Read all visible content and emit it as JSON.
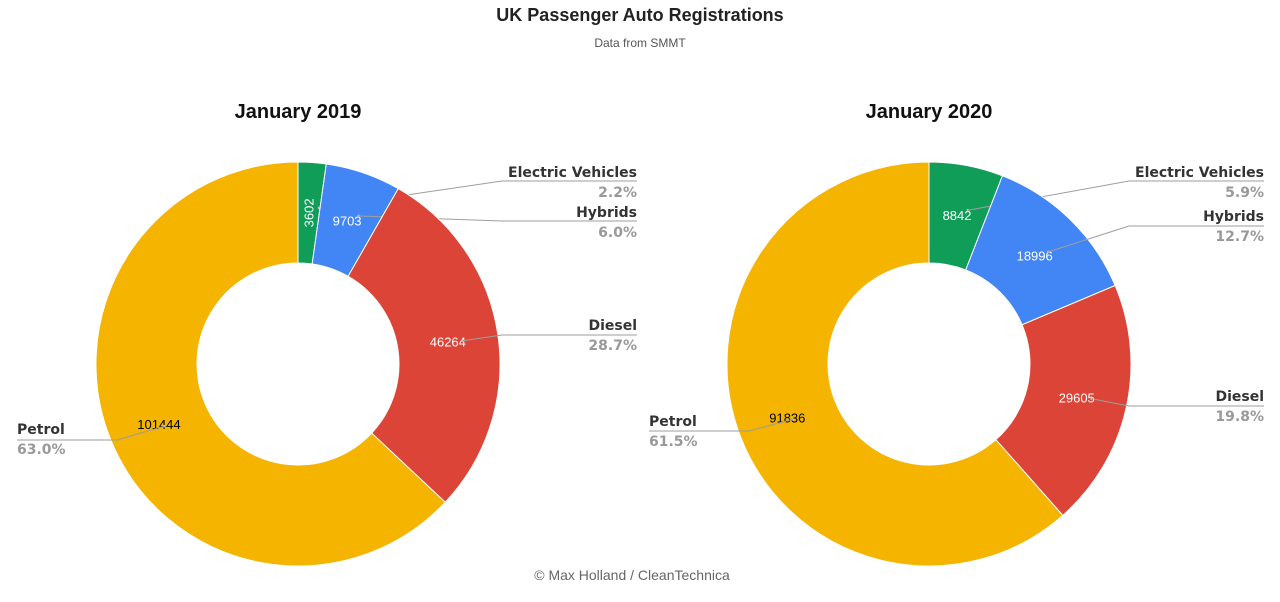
{
  "title": "UK Passenger Auto Registrations",
  "subtitle": "Data from SMMT",
  "credit": "© Max Holland / CleanTechnica",
  "colors": {
    "Electric Vehicles": "#0f9d58",
    "Hybrids": "#4285f4",
    "Diesel": "#db4437",
    "Petrol": "#f4b400"
  },
  "chart_data": [
    {
      "type": "pie",
      "style": "donut",
      "title": "January 2019",
      "categories": [
        "Electric Vehicles",
        "Hybrids",
        "Diesel",
        "Petrol"
      ],
      "values": [
        3602,
        9703,
        46264,
        101444
      ],
      "percent_labels": [
        "2.2%",
        "6.0%",
        "28.7%",
        "63.0%"
      ]
    },
    {
      "type": "pie",
      "style": "donut",
      "title": "January 2020",
      "categories": [
        "Electric Vehicles",
        "Hybrids",
        "Diesel",
        "Petrol"
      ],
      "values": [
        8842,
        18996,
        29605,
        91836
      ],
      "percent_labels": [
        "5.9%",
        "12.7%",
        "19.8%",
        "61.5%"
      ]
    }
  ]
}
